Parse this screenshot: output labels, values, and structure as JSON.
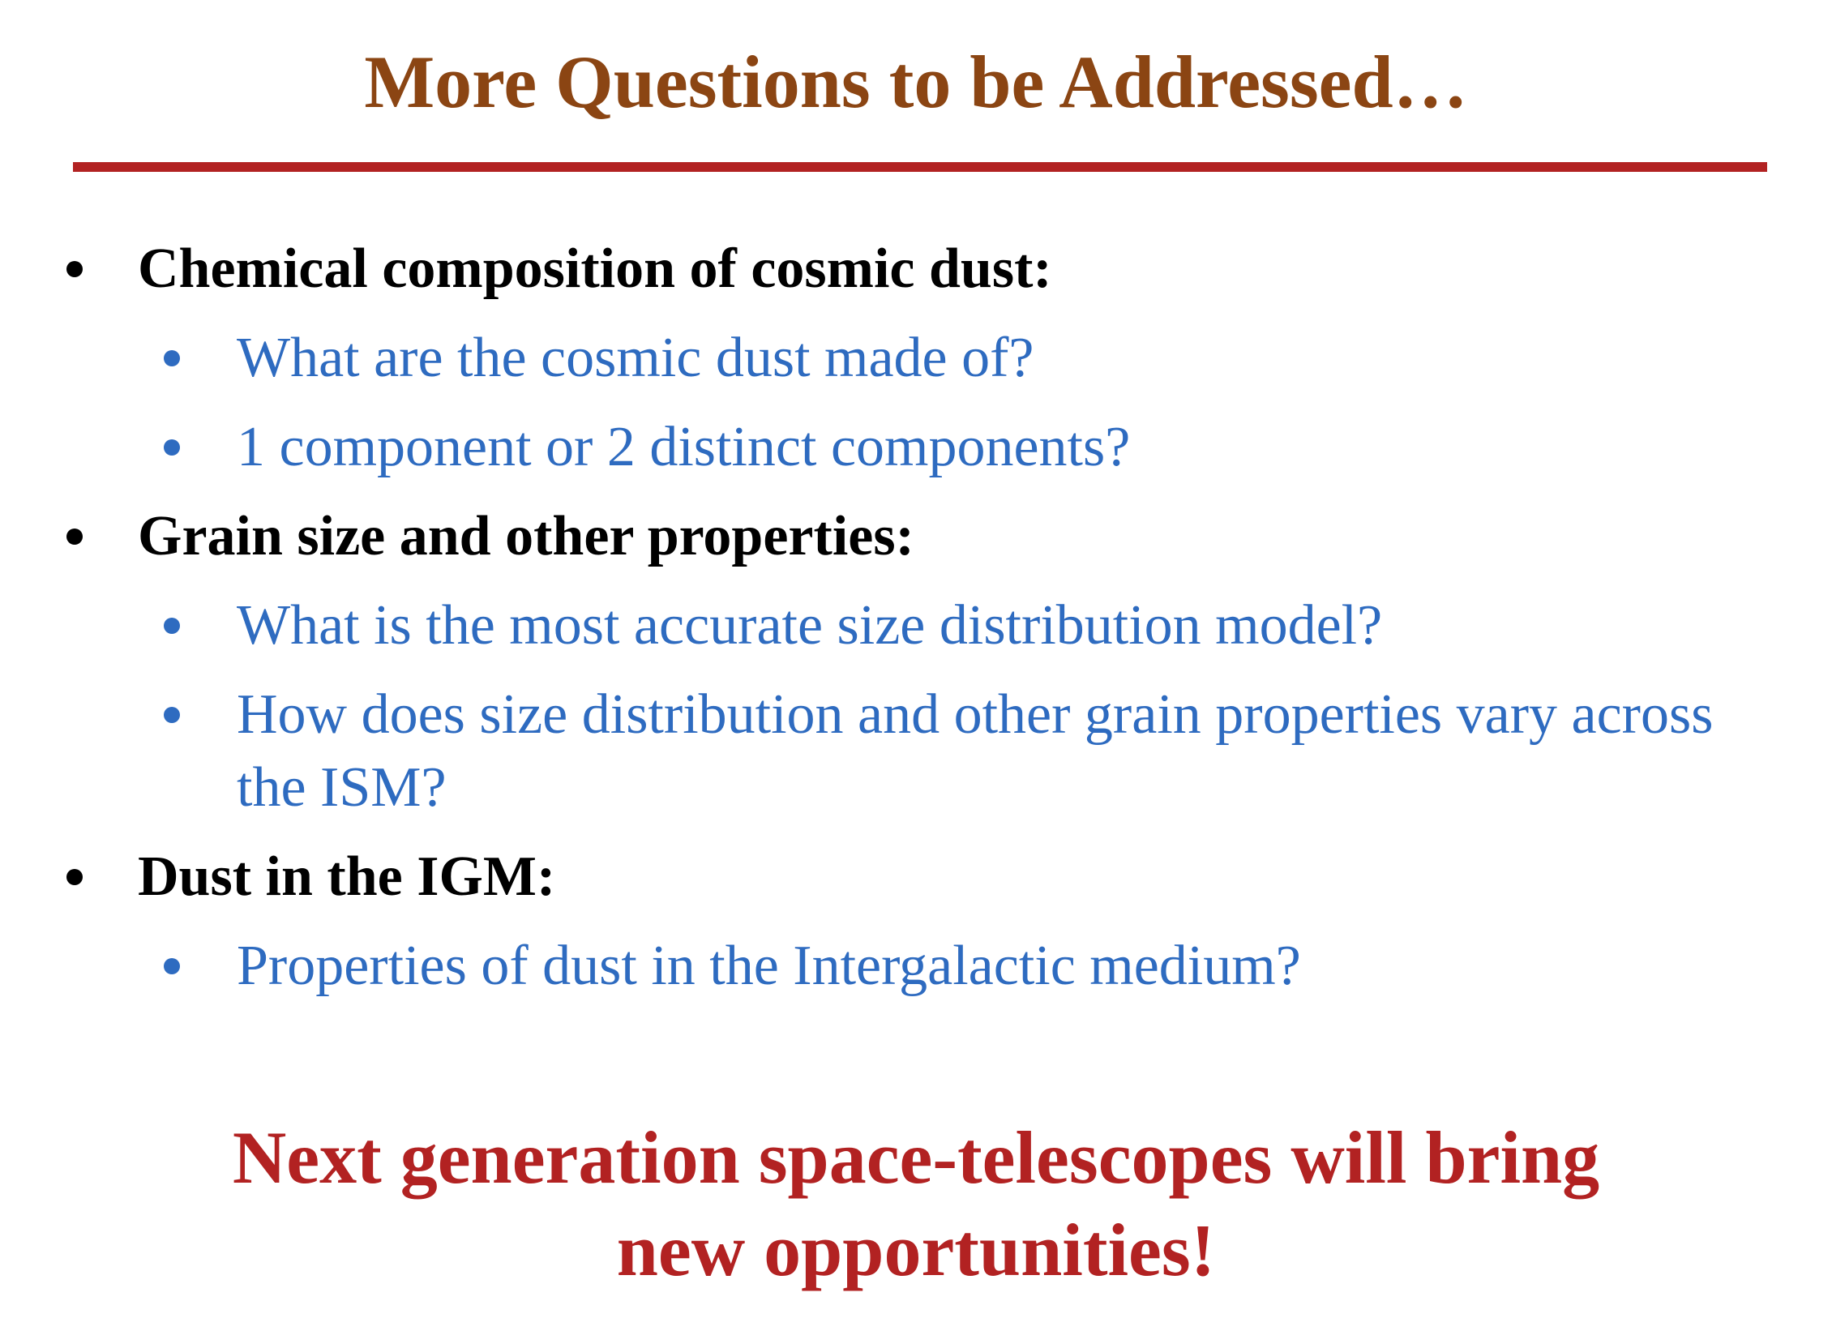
{
  "slide": {
    "title": "More Questions to be Addressed…",
    "colors": {
      "title": "#8b4513",
      "rule": "#b22222",
      "heading_text": "#000000",
      "sub_text": "#2e6bc0",
      "closing": "#b22222"
    },
    "sections": [
      {
        "heading": "Chemical composition of cosmic dust:",
        "items": [
          {
            "lines": [
              "What are the cosmic dust made of?"
            ]
          },
          {
            "lines": [
              "1 component or 2 distinct components?"
            ]
          }
        ]
      },
      {
        "heading": "Grain size and other properties:",
        "items": [
          {
            "lines": [
              "What is the most accurate size distribution model?"
            ]
          },
          {
            "lines": [
              "How does size distribution and other grain properties vary across",
              "the ISM?"
            ]
          }
        ]
      },
      {
        "heading": "Dust in the IGM:",
        "items": [
          {
            "lines": [
              "Properties of dust in the Intergalactic medium?"
            ]
          }
        ]
      }
    ],
    "closing": {
      "line1": "Next generation space-telescopes will bring",
      "line2": "new opportunities!"
    }
  }
}
